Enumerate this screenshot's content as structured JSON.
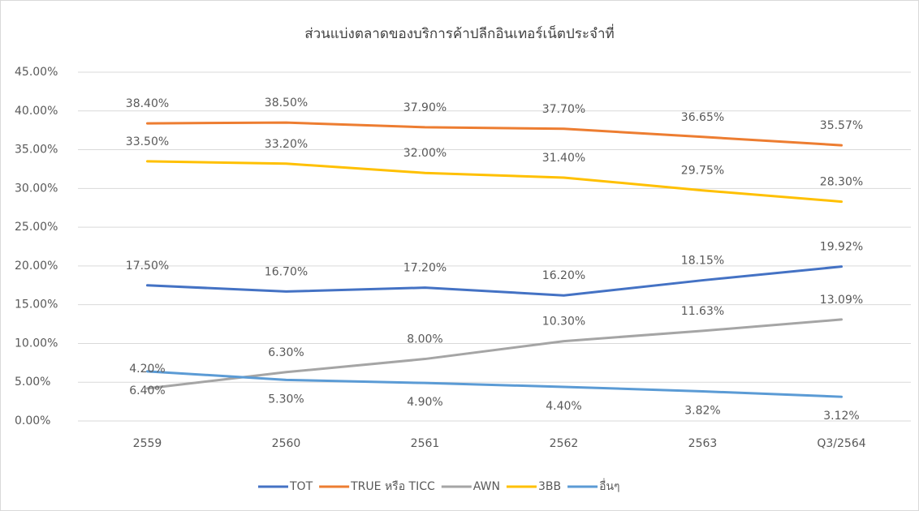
{
  "chart_data": {
    "type": "line",
    "title": "ส่วนแบ่งตลาดของบริการค้าปลีกอินเทอร์เน็ตประจำที่",
    "categories": [
      "2559",
      "2560",
      "2561",
      "2562",
      "2563",
      "Q3/2564"
    ],
    "series": [
      {
        "name": "TOT",
        "color": "#4472c4",
        "values": [
          17.5,
          16.7,
          17.2,
          16.2,
          18.15,
          19.92
        ],
        "value_labels": [
          "17.50%",
          "16.70%",
          "17.20%",
          "16.20%",
          "18.15%",
          "19.92%"
        ]
      },
      {
        "name": "TRUE หรือ TICC",
        "color": "#ed7d31",
        "values": [
          38.4,
          38.5,
          37.9,
          37.7,
          36.65,
          35.57
        ],
        "value_labels": [
          "38.40%",
          "38.50%",
          "37.90%",
          "37.70%",
          "36.65%",
          "35.57%"
        ]
      },
      {
        "name": "AWN",
        "color": "#a5a5a5",
        "values": [
          4.2,
          6.3,
          8.0,
          10.3,
          11.63,
          13.09
        ],
        "value_labels": [
          "4.20%",
          "6.30%",
          "8.00%",
          "10.30%",
          "11.63%",
          "13.09%"
        ]
      },
      {
        "name": "3BB",
        "color": "#ffc000",
        "values": [
          33.5,
          33.2,
          32.0,
          31.4,
          29.75,
          28.3
        ],
        "value_labels": [
          "33.50%",
          "33.20%",
          "32.00%",
          "31.40%",
          "29.75%",
          "28.30%"
        ]
      },
      {
        "name": "อื่นๆ",
        "color": "#5b9bd5",
        "values": [
          6.4,
          5.3,
          4.9,
          4.4,
          3.82,
          3.12
        ],
        "value_labels": [
          "6.40%",
          "5.30%",
          "4.90%",
          "4.40%",
          "3.82%",
          "3.12%"
        ]
      }
    ],
    "ylim": [
      0,
      45
    ],
    "yticks": [
      {
        "value": 0,
        "label": "0.00%"
      },
      {
        "value": 5,
        "label": "5.00%"
      },
      {
        "value": 10,
        "label": "10.00%"
      },
      {
        "value": 15,
        "label": "15.00%"
      },
      {
        "value": 20,
        "label": "20.00%"
      },
      {
        "value": 25,
        "label": "25.00%"
      },
      {
        "value": 30,
        "label": "30.00%"
      },
      {
        "value": 35,
        "label": "35.00%"
      },
      {
        "value": 40,
        "label": "40.00%"
      },
      {
        "value": 45,
        "label": "45.00%"
      }
    ],
    "grid": true,
    "legend": "bottom"
  }
}
